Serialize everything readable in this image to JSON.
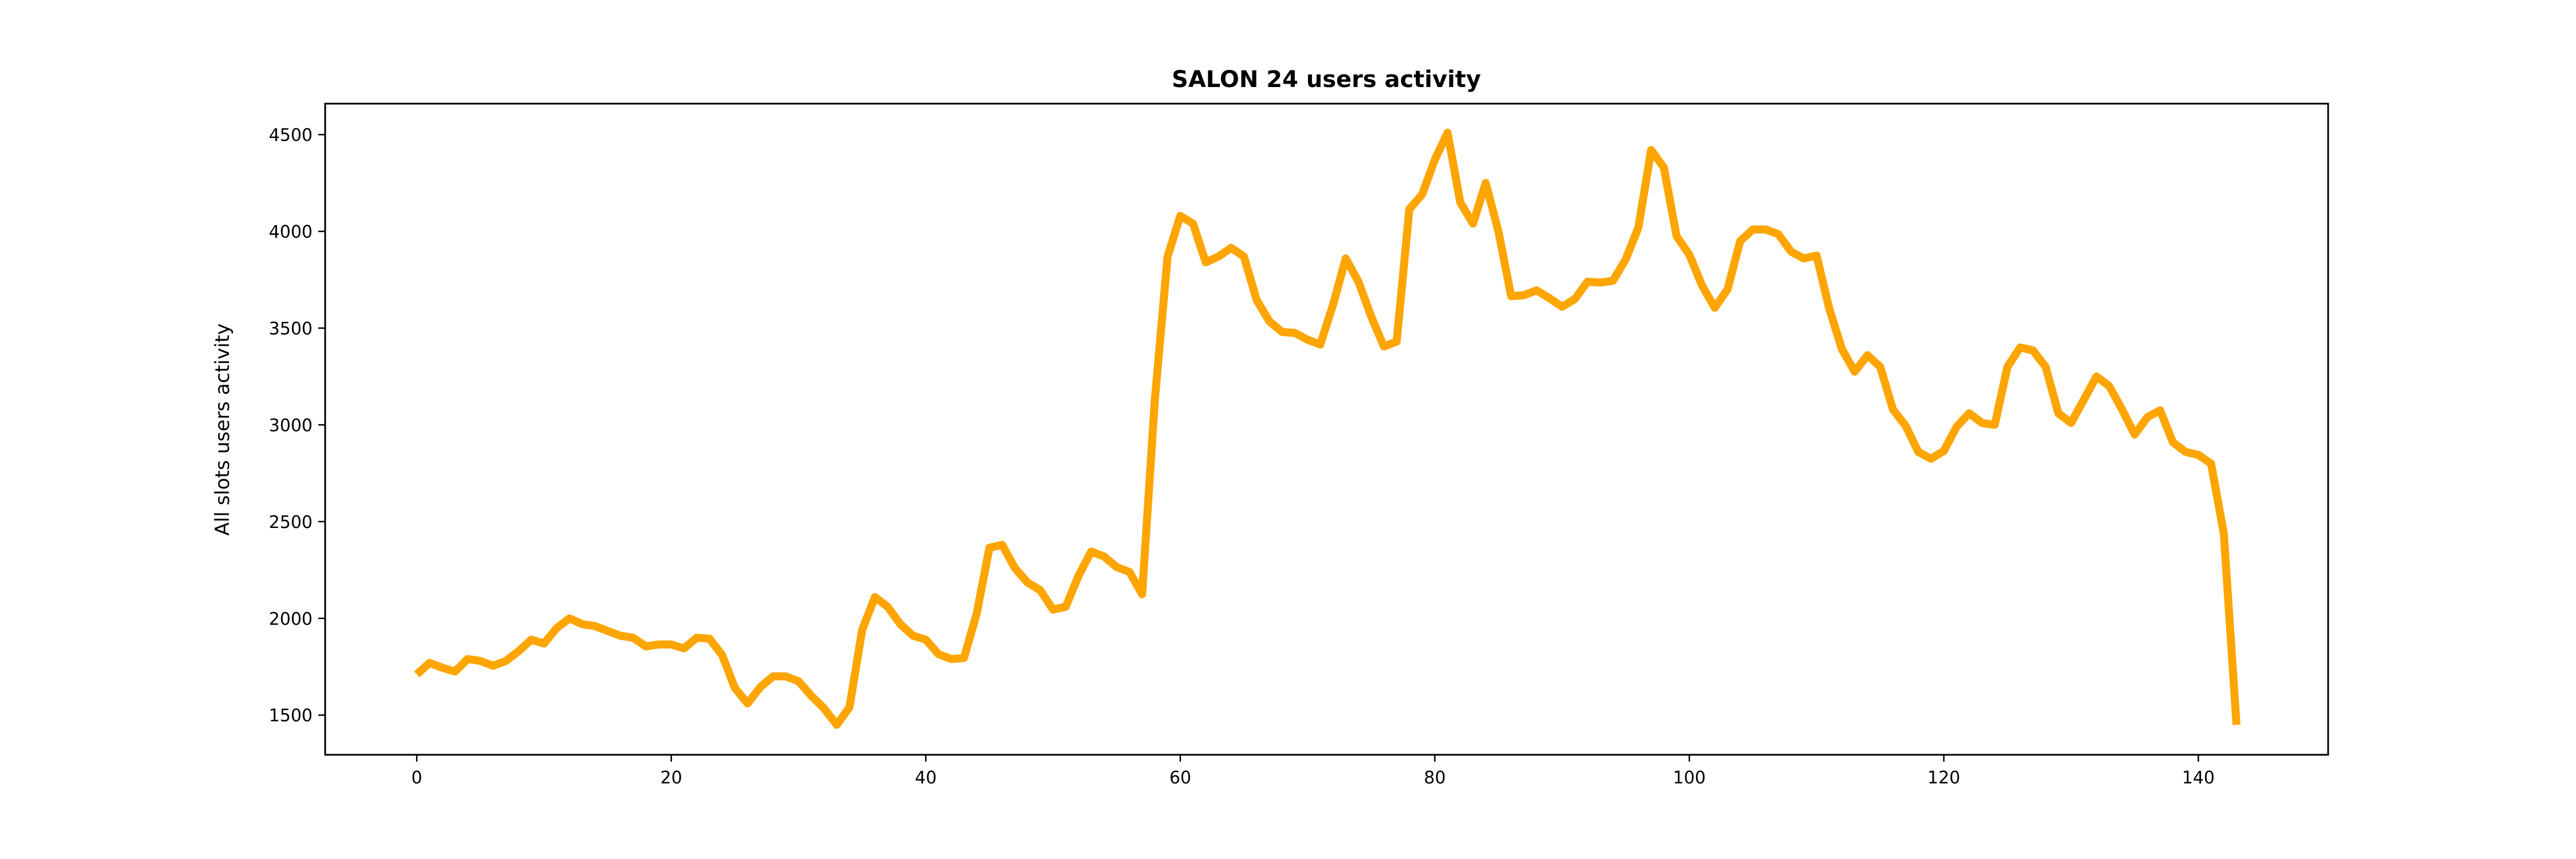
{
  "chart_data": {
    "type": "line",
    "title": "SALON 24 users activity",
    "xlabel": "",
    "ylabel": "All slots users activity",
    "xlim": [
      -7.2,
      150.2
    ],
    "ylim": [
      1295,
      4660
    ],
    "xticks": [
      0,
      20,
      40,
      60,
      80,
      100,
      120,
      140
    ],
    "yticks": [
      1500,
      2000,
      2500,
      3000,
      3500,
      4000,
      4500
    ],
    "grid": false,
    "legend": "none",
    "series": [
      {
        "color": "#FFA500",
        "x": [
          0,
          1,
          2,
          3,
          4,
          5,
          6,
          7,
          8,
          9,
          10,
          11,
          12,
          13,
          14,
          15,
          16,
          17,
          18,
          19,
          20,
          21,
          22,
          23,
          24,
          25,
          26,
          27,
          28,
          29,
          30,
          31,
          32,
          33,
          34,
          35,
          36,
          37,
          38,
          39,
          40,
          41,
          42,
          43,
          44,
          45,
          46,
          47,
          48,
          49,
          50,
          51,
          52,
          53,
          54,
          55,
          56,
          57,
          58,
          59,
          60,
          61,
          62,
          63,
          64,
          65,
          66,
          67,
          68,
          69,
          70,
          71,
          72,
          73,
          74,
          75,
          76,
          77,
          78,
          79,
          80,
          81,
          82,
          83,
          84,
          85,
          86,
          87,
          88,
          89,
          90,
          91,
          92,
          93,
          94,
          95,
          96,
          97,
          98,
          99,
          100,
          101,
          102,
          103,
          104,
          105,
          106,
          107,
          108,
          109,
          110,
          111,
          112,
          113,
          114,
          115,
          116,
          117,
          118,
          119,
          120,
          121,
          122,
          123,
          124,
          125,
          126,
          127,
          128,
          129,
          130,
          131,
          132,
          133,
          134,
          135,
          136,
          137,
          138,
          139,
          140,
          141,
          142,
          143
        ],
        "y": [
          1710,
          1770,
          1745,
          1725,
          1790,
          1780,
          1755,
          1780,
          1830,
          1890,
          1870,
          1950,
          2000,
          1970,
          1960,
          1935,
          1910,
          1900,
          1855,
          1865,
          1865,
          1845,
          1900,
          1895,
          1810,
          1640,
          1560,
          1645,
          1700,
          1700,
          1675,
          1600,
          1535,
          1450,
          1540,
          1940,
          2110,
          2060,
          1970,
          1910,
          1890,
          1815,
          1790,
          1795,
          2025,
          2365,
          2380,
          2260,
          2185,
          2145,
          2045,
          2060,
          2220,
          2345,
          2320,
          2265,
          2240,
          2125,
          3130,
          3870,
          4080,
          4040,
          3840,
          3870,
          3915,
          3870,
          3645,
          3535,
          3480,
          3475,
          3440,
          3415,
          3620,
          3860,
          3740,
          3560,
          3405,
          3430,
          4115,
          4190,
          4370,
          4510,
          4150,
          4040,
          4250,
          4000,
          3665,
          3670,
          3695,
          3655,
          3610,
          3650,
          3740,
          3735,
          3745,
          3855,
          4020,
          4420,
          4330,
          3975,
          3880,
          3720,
          3605,
          3700,
          3950,
          4010,
          4010,
          3985,
          3895,
          3860,
          3875,
          3600,
          3390,
          3275,
          3360,
          3300,
          3080,
          2995,
          2860,
          2825,
          2865,
          2990,
          3060,
          3010,
          3000,
          3300,
          3400,
          3385,
          3300,
          3060,
          3010,
          3130,
          3250,
          3200,
          3080,
          2950,
          3040,
          3075,
          2910,
          2860,
          2845,
          2800,
          2440,
          1450
        ]
      }
    ]
  }
}
